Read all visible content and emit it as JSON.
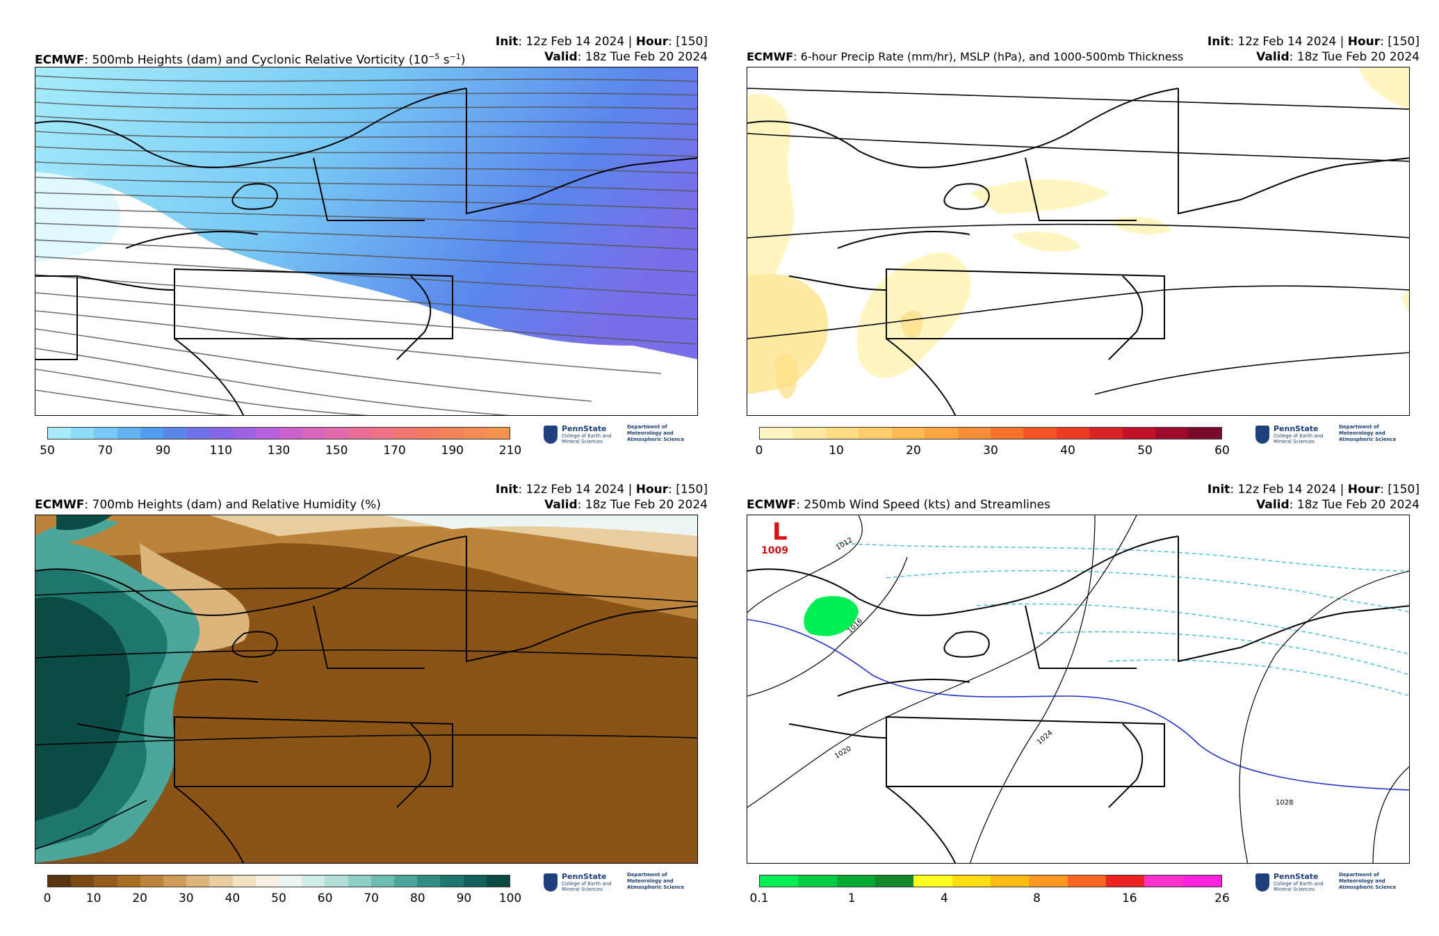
{
  "panels": [
    {
      "model": "ECMWF",
      "title_rest": ": 500mb Heights (dam) and Cyclonic Relative Vorticity (10",
      "title_sup": "−5",
      "title_mid": " s",
      "title_sup2": "−1",
      "title_end": ")",
      "init_label": "Init",
      "init_value": ": 12z Feb 14 2024 | ",
      "hour_label": "Hour",
      "hour_value": ": [150]",
      "valid_label": "Valid",
      "valid_value": ": 18z Tue Feb 20 2024",
      "colorbar": {
        "ticks": [
          "50",
          "70",
          "90",
          "110",
          "130",
          "150",
          "170",
          "190",
          "210"
        ],
        "colors": [
          "#a6ecfb",
          "#8fdcf8",
          "#78c9f5",
          "#62b4f1",
          "#4f9df0",
          "#5a86ec",
          "#6f72ea",
          "#8466e6",
          "#9d62e2",
          "#b660dc",
          "#ca62cd",
          "#d966bd",
          "#e26aab",
          "#ea6e98",
          "#ef7385",
          "#f27773",
          "#f47c63",
          "#f5835a",
          "#f68b55",
          "#f6934f"
        ]
      }
    },
    {
      "model": "ECMWF",
      "title_rest": ": 6-hour Precip Rate (mm/hr), MSLP (hPa), and 1000-500mb Thickness",
      "init_label": "Init",
      "init_value": ": 12z Feb 14 2024 | ",
      "hour_label": "Hour",
      "hour_value": ": [150]",
      "valid_label": "Valid",
      "valid_value": ": 18z Tue Feb 20 2024",
      "colorbar": {
        "ticks": [
          "0",
          "10",
          "20",
          "30",
          "40",
          "50",
          "60"
        ],
        "colors": [
          "#fff6c2",
          "#ffeaa3",
          "#ffdd85",
          "#ffcd6a",
          "#ffbb52",
          "#ffa442",
          "#ff8c36",
          "#fd712d",
          "#f85527",
          "#ec3a24",
          "#d92224",
          "#c01128",
          "#9e0a2c",
          "#7a0a2c"
        ]
      }
    },
    {
      "model": "ECMWF",
      "title_rest": ": 700mb Heights (dam) and Relative Humidity (%)",
      "init_label": "Init",
      "init_value": ": 12z Feb 14 2024 | ",
      "hour_label": "Hour",
      "hour_value": ": [150]",
      "valid_label": "Valid",
      "valid_value": ": 18z Tue Feb 20 2024",
      "colorbar": {
        "ticks": [
          "0",
          "10",
          "20",
          "30",
          "40",
          "50",
          "60",
          "70",
          "80",
          "90",
          "100"
        ],
        "colors": [
          "#5a3510",
          "#7a4a14",
          "#935c1a",
          "#a86e24",
          "#bb843a",
          "#cd9c58",
          "#dcb57c",
          "#e8cda0",
          "#f2e2c4",
          "#f7f0e2",
          "#eef6f4",
          "#d2ece8",
          "#b2e0d8",
          "#8fcfc5",
          "#6dbdb1",
          "#4da69a",
          "#328d82",
          "#1f766c",
          "#115f57",
          "#0a4b44"
        ]
      }
    },
    {
      "model": "ECMWF",
      "title_rest": ": 250mb Wind Speed (kts) and Streamlines",
      "init_label": "Init",
      "init_value": ": 12z Feb 14 2024 | ",
      "hour_label": "Hour",
      "hour_value": ": [150]",
      "valid_label": "Valid",
      "valid_value": ": 18z Tue Feb 20 2024",
      "colorbar": {
        "ticks": [
          "0.1",
          "1",
          "4",
          "8",
          "16",
          "26"
        ],
        "colors": [
          "#00ee55",
          "#00cc44",
          "#00aa33",
          "#11882a",
          "#ffff22",
          "#ffdd11",
          "#ffbb11",
          "#ff9922",
          "#ff6622",
          "#ee2222",
          "#ff33cc",
          "#ff22dd"
        ]
      },
      "pressure_labels": [
        "1012",
        "1016",
        "1020",
        "1024",
        "1028"
      ],
      "low_symbol": "L",
      "low_value": "1009"
    }
  ],
  "logo": {
    "university": "PennState",
    "college": "College of Earth and Mineral Sciences",
    "department": "Department of Meteorology and Atmospheric Science"
  },
  "icons": [
    "pennstate-shield-icon"
  ]
}
